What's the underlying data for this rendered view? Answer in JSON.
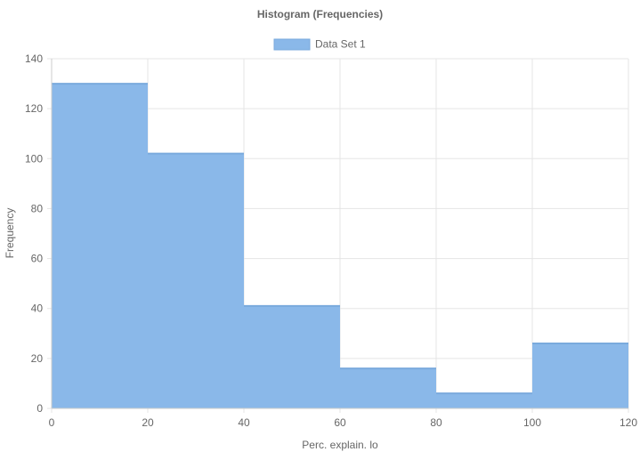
{
  "chart_data": {
    "type": "bar",
    "title": "Histogram (Frequencies)",
    "xlabel": "Perc. explain. lo",
    "ylabel": "Frequency",
    "legend": {
      "position": "top",
      "series_name": "Data Set 1"
    },
    "bins": [
      {
        "x0": 0,
        "x1": 20,
        "value": 130
      },
      {
        "x0": 20,
        "x1": 40,
        "value": 102
      },
      {
        "x0": 40,
        "x1": 60,
        "value": 41
      },
      {
        "x0": 60,
        "x1": 80,
        "value": 16
      },
      {
        "x0": 80,
        "x1": 100,
        "value": 6
      },
      {
        "x0": 100,
        "x1": 120,
        "value": 26
      }
    ],
    "series": [
      {
        "name": "Data Set 1",
        "values": [
          130,
          102,
          41,
          16,
          6,
          26
        ]
      }
    ],
    "xlim": [
      0,
      120
    ],
    "ylim": [
      0,
      140
    ],
    "x_ticks": [
      "0",
      "20",
      "40",
      "60",
      "80",
      "100",
      "120"
    ],
    "y_ticks": [
      "0",
      "20",
      "40",
      "60",
      "80",
      "100",
      "120",
      "140"
    ],
    "grid": true,
    "colors": {
      "bar_fill": "#8ab8e9",
      "bar_stroke": "#7aaadd",
      "grid": "#e5e5e5",
      "axis": "#cccccc",
      "text": "#666666"
    }
  }
}
